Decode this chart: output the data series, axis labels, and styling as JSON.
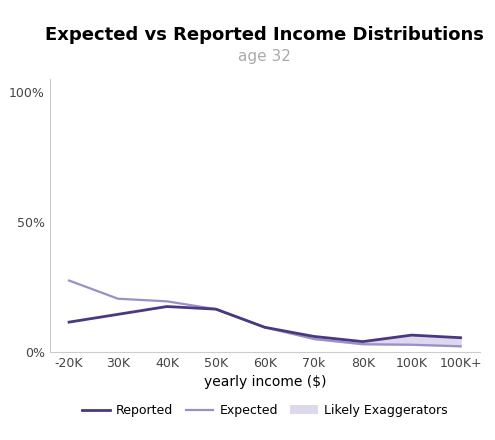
{
  "title": "Expected vs Reported Income Distributions",
  "subtitle": "age 32",
  "xlabel": "yearly income ($)",
  "ylabel_ticks": [
    "0%",
    "50%",
    "100%"
  ],
  "yticks": [
    0,
    0.5,
    1.0
  ],
  "xtick_labels": [
    "-20K",
    "30K",
    "40K",
    "50K",
    "60K",
    "70k",
    "80K",
    "100K",
    "100K+"
  ],
  "x_positions": [
    0,
    1,
    2,
    3,
    4,
    5,
    6,
    7,
    8
  ],
  "reported": [
    0.115,
    0.145,
    0.175,
    0.165,
    0.095,
    0.06,
    0.04,
    0.065,
    0.055
  ],
  "expected": [
    0.275,
    0.205,
    0.195,
    0.165,
    0.095,
    0.05,
    0.03,
    0.028,
    0.022
  ],
  "reported_color": "#4a3880",
  "expected_color": "#9b8fc5",
  "exaggerators_color": "#ddd8ee",
  "subtitle_color": "#aaaaaa",
  "background_color": "#ffffff",
  "title_fontsize": 13,
  "subtitle_fontsize": 11,
  "label_fontsize": 10,
  "tick_fontsize": 9,
  "legend_fontsize": 9
}
